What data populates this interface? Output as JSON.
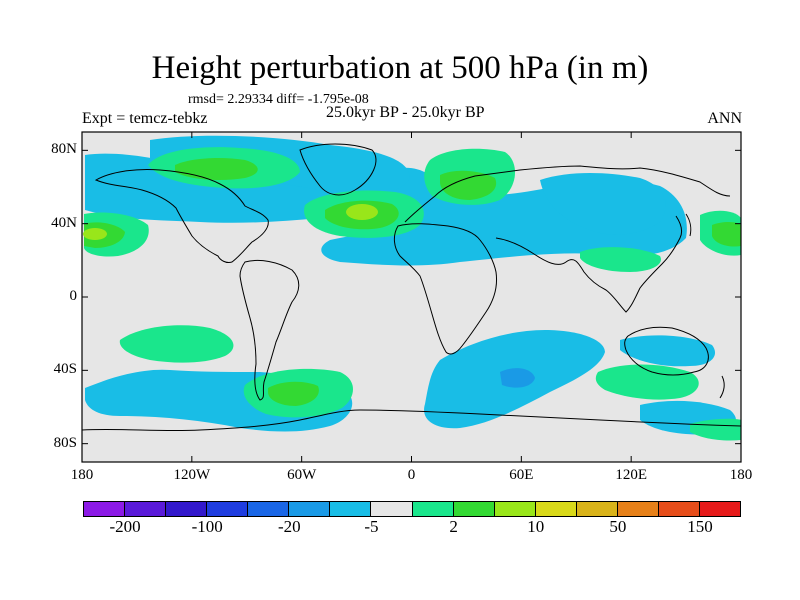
{
  "title": "Height perturbation at 500 hPa (in m)",
  "stats": "rmsd= 2.29334 diff= -1.795e-08",
  "experiment": "Expt = temcz-tebkz",
  "period": "25.0kyr BP - 25.0kyr BP",
  "season": "ANN",
  "axes": {
    "x_ticks": [
      {
        "label": "180",
        "lon": -180
      },
      {
        "label": "120W",
        "lon": -120
      },
      {
        "label": "60W",
        "lon": -60
      },
      {
        "label": "0",
        "lon": 0
      },
      {
        "label": "60E",
        "lon": 60
      },
      {
        "label": "120E",
        "lon": 120
      },
      {
        "label": "180",
        "lon": 180
      }
    ],
    "y_ticks": [
      {
        "label": "80N",
        "lat": 80
      },
      {
        "label": "40N",
        "lat": 40
      },
      {
        "label": "0",
        "lat": 0
      },
      {
        "label": "40S",
        "lat": -40
      },
      {
        "label": "80S",
        "lat": -80
      }
    ],
    "lon_range": [
      -180,
      180
    ],
    "lat_range": [
      -90,
      90
    ]
  },
  "colorbar": {
    "colors": [
      "#8c1ae6",
      "#5a1ad9",
      "#3319cc",
      "#1f3de0",
      "#1a66e6",
      "#1a9ae6",
      "#19bde6",
      "#e6e6e6",
      "#1ae68c",
      "#33d933",
      "#99e61a",
      "#d9d91a",
      "#d9b31a",
      "#e68019",
      "#e64d1a",
      "#e61a1a"
    ],
    "labels": [
      {
        "text": "-200",
        "boundary": 1
      },
      {
        "text": "-100",
        "boundary": 3
      },
      {
        "text": "-20",
        "boundary": 5
      },
      {
        "text": "-5",
        "boundary": 7
      },
      {
        "text": "2",
        "boundary": 9
      },
      {
        "text": "10",
        "boundary": 11
      },
      {
        "text": "50",
        "boundary": 13
      },
      {
        "text": "150",
        "boundary": 15
      }
    ]
  },
  "colors": {
    "background": "#e6e6e6",
    "light_blue": "#19bde6",
    "mid_blue": "#1a9ae6",
    "light_green": "#1ae68c",
    "green": "#33d933",
    "yellow_green": "#99e61a"
  }
}
